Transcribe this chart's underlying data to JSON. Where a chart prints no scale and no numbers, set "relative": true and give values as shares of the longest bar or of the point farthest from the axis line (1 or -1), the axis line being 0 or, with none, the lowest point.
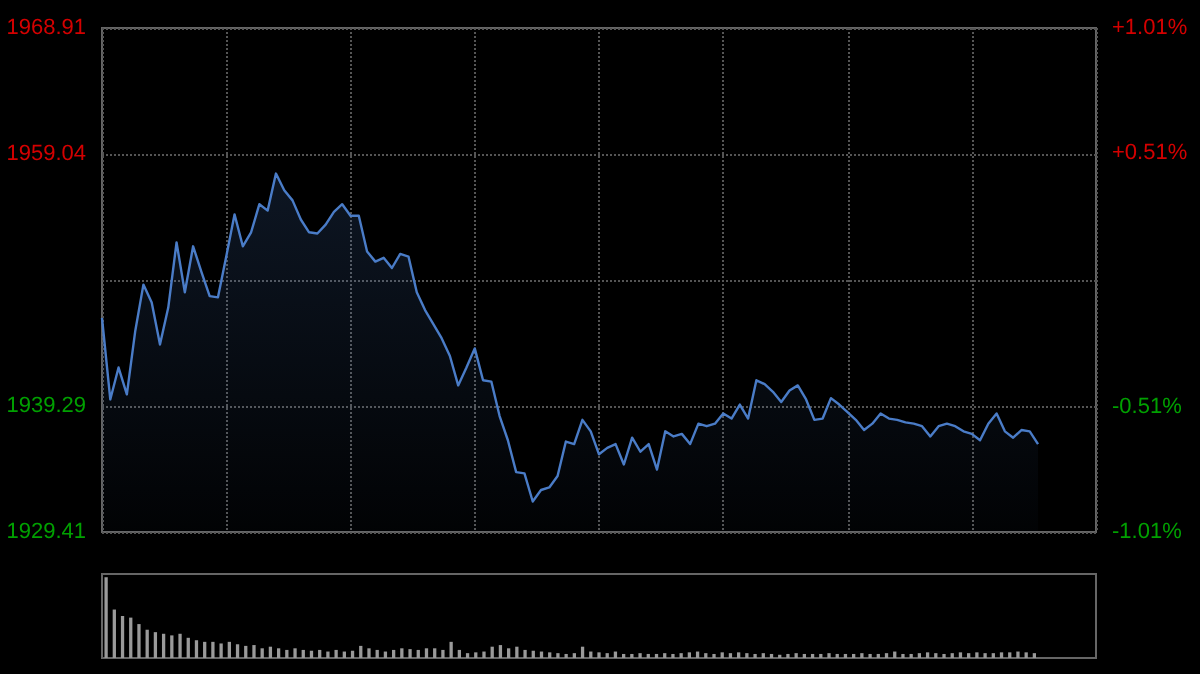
{
  "chart_data": [
    {
      "type": "area",
      "categories": [
        null,
        null,
        null,
        null,
        null,
        null,
        null,
        null,
        null,
        null,
        null,
        null,
        null,
        null,
        null,
        null,
        null,
        null,
        null,
        null,
        null,
        null,
        null,
        null,
        null,
        null,
        null,
        null,
        null,
        null,
        null,
        null,
        null,
        null,
        null,
        null,
        null,
        null,
        null,
        null,
        null,
        null,
        null,
        null,
        null,
        null,
        null,
        null,
        null,
        null,
        null,
        null,
        null,
        null,
        null,
        null,
        null,
        null,
        null,
        null,
        null,
        null,
        null,
        null,
        null,
        null,
        null,
        null,
        null,
        null,
        null,
        null,
        null,
        null,
        null,
        null,
        null,
        null,
        null,
        null,
        null,
        null,
        null,
        null,
        null,
        null,
        null,
        null,
        null,
        null,
        null,
        null,
        null,
        null,
        null,
        null,
        null,
        null,
        null,
        null,
        null,
        null,
        null,
        null,
        null,
        null,
        null,
        null,
        null,
        null,
        null,
        null,
        null,
        null
      ],
      "series": [
        {
          "color": "#4a7cc7",
          "values": [
            1946.2,
            1939.8,
            1942.3,
            1940.2,
            1945.1,
            1948.8,
            1947.4,
            1944.1,
            1947.0,
            1952.1,
            1948.2,
            1951.8,
            1949.8,
            1947.9,
            1947.8,
            1951.0,
            1954.3,
            1951.8,
            1952.9,
            1955.1,
            1954.6,
            1957.5,
            1956.2,
            1955.4,
            1953.9,
            1952.9,
            1952.8,
            1953.5,
            1954.5,
            1955.1,
            1954.2,
            1954.2,
            1951.4,
            1950.6,
            1950.9,
            1950.1,
            1951.2,
            1951.0,
            1948.2,
            1946.8,
            1945.7,
            1944.6,
            1943.2,
            1940.9,
            1942.3,
            1943.8,
            1941.3,
            1941.2,
            1938.5,
            1936.6,
            1934.1,
            1934.0,
            1931.8,
            1932.7,
            1932.9,
            1933.8,
            1936.5,
            1936.3,
            1938.2,
            1937.3,
            1935.5,
            1936.0,
            1936.3,
            1934.7,
            1936.8,
            1935.7,
            1936.3,
            1934.3,
            1937.3,
            1936.9,
            1937.1,
            1936.3,
            1937.9,
            1937.7,
            1937.9,
            1938.7,
            1938.3,
            1939.4,
            1938.3,
            1941.3,
            1941.0,
            1940.4,
            1939.6,
            1940.5,
            1940.9,
            1939.8,
            1938.2,
            1938.3,
            1939.9,
            1939.4,
            1938.8,
            1938.2,
            1937.4,
            1937.9,
            1938.7,
            1938.3,
            1938.2,
            1938.0,
            1937.9,
            1937.7,
            1936.9,
            1937.7,
            1937.9,
            1937.7,
            1937.3,
            1937.1,
            1936.6,
            1937.9,
            1938.7,
            1937.3,
            1936.8,
            1937.4,
            1937.3,
            1936.3
          ]
        }
      ],
      "ylim": [
        1929.41,
        1968.91
      ],
      "yticks": [
        1929.41,
        1939.29,
        {
          "value": 1949.16,
          "label": null
        },
        1959.04,
        1968.91
      ],
      "y2lim": [
        -1.01,
        1.01
      ],
      "y2ticks": [
        {
          "value": -1.01,
          "label": "-1.01%"
        },
        {
          "value": -0.51,
          "label": "-0.51%"
        },
        {
          "value": 0,
          "label": null
        },
        {
          "value": 0.51,
          "label": "+0.51%"
        },
        {
          "value": 1.01,
          "label": "+1.01%"
        }
      ],
      "grid": true
    },
    {
      "type": "bar",
      "relative": true,
      "categories": [
        null,
        null,
        null,
        null,
        null,
        null,
        null,
        null,
        null,
        null,
        null,
        null,
        null,
        null,
        null,
        null,
        null,
        null,
        null,
        null,
        null,
        null,
        null,
        null,
        null,
        null,
        null,
        null,
        null,
        null,
        null,
        null,
        null,
        null,
        null,
        null,
        null,
        null,
        null,
        null,
        null,
        null,
        null,
        null,
        null,
        null,
        null,
        null,
        null,
        null,
        null,
        null,
        null,
        null,
        null,
        null,
        null,
        null,
        null,
        null,
        null,
        null,
        null,
        null,
        null,
        null,
        null,
        null,
        null,
        null,
        null,
        null,
        null,
        null,
        null,
        null,
        null,
        null,
        null,
        null,
        null,
        null,
        null,
        null,
        null,
        null,
        null,
        null,
        null,
        null,
        null,
        null,
        null,
        null,
        null,
        null,
        null,
        null,
        null,
        null,
        null,
        null,
        null,
        null,
        null,
        null,
        null,
        null,
        null,
        null,
        null,
        null,
        null,
        null
      ],
      "series": [
        {
          "color": "#9a9a9a",
          "values": [
            1.0,
            0.6,
            0.52,
            0.5,
            0.42,
            0.35,
            0.32,
            0.3,
            0.28,
            0.3,
            0.25,
            0.22,
            0.2,
            0.2,
            0.18,
            0.2,
            0.17,
            0.15,
            0.16,
            0.12,
            0.14,
            0.12,
            0.1,
            0.12,
            0.1,
            0.09,
            0.1,
            0.08,
            0.1,
            0.08,
            0.09,
            0.15,
            0.12,
            0.1,
            0.08,
            0.1,
            0.12,
            0.11,
            0.1,
            0.12,
            0.12,
            0.1,
            0.2,
            0.1,
            0.06,
            0.07,
            0.08,
            0.14,
            0.16,
            0.12,
            0.14,
            0.1,
            0.09,
            0.08,
            0.07,
            0.06,
            0.05,
            0.06,
            0.14,
            0.08,
            0.07,
            0.06,
            0.08,
            0.05,
            0.05,
            0.06,
            0.05,
            0.05,
            0.06,
            0.05,
            0.06,
            0.07,
            0.08,
            0.06,
            0.05,
            0.07,
            0.06,
            0.07,
            0.06,
            0.05,
            0.06,
            0.05,
            0.04,
            0.05,
            0.06,
            0.05,
            0.05,
            0.05,
            0.06,
            0.05,
            0.05,
            0.05,
            0.06,
            0.05,
            0.05,
            0.06,
            0.08,
            0.05,
            0.05,
            0.06,
            0.07,
            0.06,
            0.05,
            0.06,
            0.07,
            0.06,
            0.07,
            0.06,
            0.06,
            0.07,
            0.07,
            0.08,
            0.07,
            0.06
          ]
        }
      ]
    }
  ]
}
